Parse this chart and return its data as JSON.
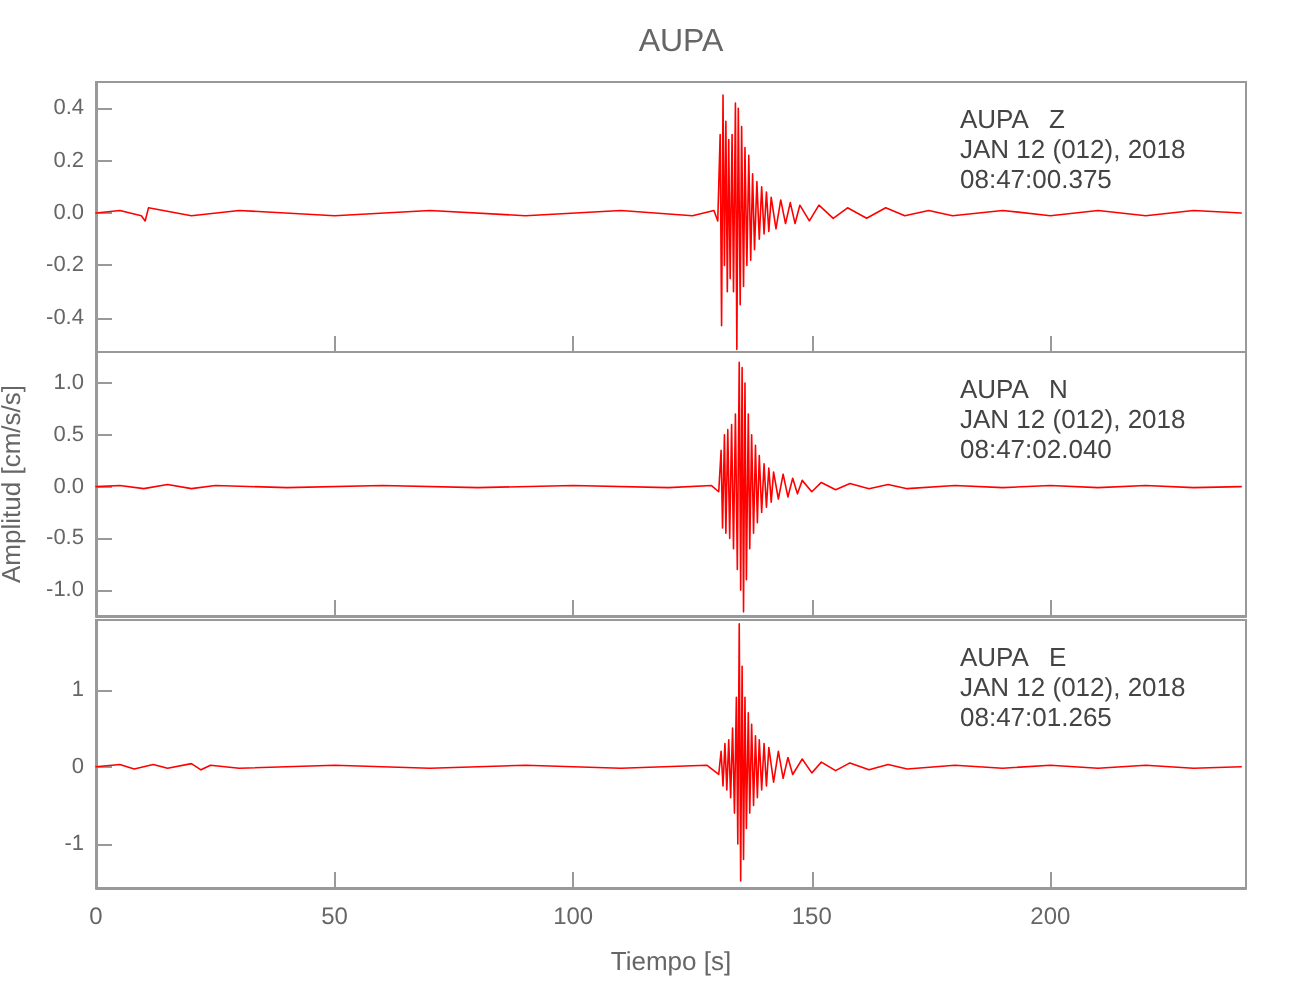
{
  "chart_data": [
    {
      "type": "line",
      "title": "AUPA",
      "color": "#ff0000",
      "marker": "none",
      "line_style": "solid",
      "grid": false,
      "tick_labels": "y",
      "x": [
        0,
        5,
        9.5,
        10.3,
        11,
        20,
        30,
        50,
        70,
        90,
        110,
        125,
        129.5,
        130.3,
        130.8,
        131.1,
        131.4,
        131.7,
        132,
        132.3,
        132.6,
        132.9,
        133.3,
        133.6,
        134,
        134.3,
        134.6,
        135,
        135.3,
        135.7,
        136,
        136.4,
        136.8,
        137.2,
        137.6,
        138,
        138.5,
        139,
        139.5,
        140,
        140.5,
        141,
        141.5,
        142.5,
        143.5,
        144.5,
        145.5,
        146.5,
        147.5,
        149.5,
        151.5,
        154.5,
        157.5,
        161.5,
        165.5,
        169.5,
        174.5,
        179.5,
        190,
        200,
        210,
        220,
        230,
        240
      ],
      "values": [
        0,
        0.01,
        -0.01,
        -0.03,
        0.02,
        -0.01,
        0.01,
        -0.01,
        0.01,
        -0.01,
        0.01,
        -0.01,
        0.01,
        -0.03,
        0.3,
        -0.43,
        0.45,
        -0.2,
        0.35,
        -0.3,
        0.28,
        -0.25,
        0.3,
        -0.3,
        0.42,
        -0.52,
        0.4,
        -0.35,
        0.33,
        -0.28,
        0.25,
        -0.2,
        0.22,
        -0.18,
        0.15,
        -0.14,
        0.12,
        -0.1,
        0.1,
        -0.08,
        0.08,
        -0.07,
        0.06,
        -0.06,
        0.05,
        -0.04,
        0.04,
        -0.04,
        0.03,
        -0.03,
        0.03,
        -0.02,
        0.02,
        -0.02,
        0.02,
        -0.01,
        0.01,
        -0.01,
        0.01,
        -0.01,
        0.01,
        -0.01,
        0.01,
        0
      ],
      "xlim": [
        0,
        241
      ],
      "xticks": [
        0,
        50,
        100,
        150,
        200
      ],
      "ylim": [
        -0.53,
        0.5
      ],
      "yticks": [
        {
          "value": -0.4,
          "label": "-0.4"
        },
        -0.2,
        {
          "value": 0,
          "label": "0.0"
        },
        0.2,
        0.4
      ],
      "annotations": [
        "AUPA   Z",
        "JAN 12 (012), 2018",
        "08:47:00.375"
      ]
    },
    {
      "type": "line",
      "ylabel": "Amplitud [cm/s/s]",
      "color": "#ff0000",
      "marker": "none",
      "line_style": "solid",
      "grid": false,
      "tick_labels": "y",
      "x": [
        0,
        5,
        10,
        15,
        20,
        25,
        40,
        60,
        80,
        100,
        120,
        129,
        130.5,
        131,
        131.3,
        131.7,
        132,
        132.4,
        132.8,
        133.2,
        133.6,
        134,
        134.4,
        134.8,
        135.1,
        135.4,
        135.7,
        136,
        136.3,
        136.7,
        137,
        137.4,
        137.8,
        138.2,
        138.6,
        139,
        139.5,
        140,
        140.5,
        141,
        141.5,
        142,
        143,
        144,
        145,
        146,
        147,
        148,
        150,
        152,
        155,
        158,
        162,
        166,
        170,
        180,
        190,
        200,
        210,
        220,
        230,
        240
      ],
      "values": [
        0,
        0.01,
        -0.02,
        0.02,
        -0.02,
        0.01,
        -0.01,
        0.01,
        -0.01,
        0.01,
        -0.01,
        0.01,
        -0.05,
        0.35,
        -0.4,
        0.5,
        -0.45,
        0.55,
        -0.5,
        0.6,
        -0.6,
        0.7,
        -0.8,
        1.2,
        -1,
        1.15,
        -1.21,
        1,
        -0.9,
        0.7,
        -0.6,
        0.5,
        -0.45,
        0.4,
        -0.35,
        0.3,
        -0.25,
        0.22,
        -0.2,
        0.18,
        -0.15,
        0.14,
        -0.12,
        0.12,
        -0.1,
        0.08,
        -0.07,
        0.06,
        -0.05,
        0.04,
        -0.03,
        0.03,
        -0.02,
        0.02,
        -0.02,
        0.01,
        -0.01,
        0.01,
        -0.01,
        0.01,
        -0.01,
        0
      ],
      "xlim": [
        0,
        241
      ],
      "xticks": [
        0,
        50,
        100,
        150,
        200
      ],
      "ylim": [
        -1.25,
        1.3
      ],
      "yticks": [
        {
          "value": -1,
          "label": "-1.0"
        },
        -0.5,
        {
          "value": 0,
          "label": "0.0"
        },
        0.5,
        {
          "value": 1,
          "label": "1.0"
        }
      ],
      "annotations": [
        "AUPA   N",
        "JAN 12 (012), 2018",
        "08:47:02.040"
      ]
    },
    {
      "type": "line",
      "xlabel": "Tiempo [s]",
      "color": "#ff0000",
      "marker": "none",
      "line_style": "solid",
      "grid": false,
      "x": [
        0,
        5,
        8,
        12,
        15,
        20,
        22,
        24,
        30,
        50,
        70,
        90,
        110,
        128,
        130.5,
        131,
        131.4,
        131.8,
        132.2,
        132.6,
        133,
        133.4,
        133.8,
        134.2,
        134.5,
        134.8,
        135.1,
        135.4,
        135.7,
        136,
        136.3,
        136.7,
        137,
        137.4,
        137.8,
        138.2,
        138.6,
        139,
        139.5,
        140,
        140.5,
        141,
        142,
        143,
        144,
        145,
        146,
        148,
        150,
        152,
        155,
        158,
        162,
        166,
        170,
        180,
        190,
        200,
        210,
        220,
        230,
        240
      ],
      "values": [
        0,
        0.03,
        -0.03,
        0.03,
        -0.02,
        0.04,
        -0.04,
        0.02,
        -0.02,
        0.02,
        -0.02,
        0.02,
        -0.02,
        0.02,
        -0.1,
        0.2,
        -0.25,
        0.3,
        -0.3,
        0.35,
        -0.4,
        0.5,
        -0.6,
        0.9,
        -1,
        1.85,
        -1.48,
        1.3,
        -1.2,
        0.9,
        -0.8,
        0.7,
        -0.6,
        0.55,
        -0.5,
        0.4,
        -0.4,
        0.35,
        -0.3,
        0.3,
        -0.25,
        0.25,
        -0.2,
        0.2,
        -0.15,
        0.12,
        -0.1,
        0.1,
        -0.08,
        0.06,
        -0.05,
        0.05,
        -0.04,
        0.03,
        -0.03,
        0.02,
        -0.02,
        0.02,
        -0.02,
        0.02,
        -0.02,
        0
      ],
      "xlim": [
        0,
        241
      ],
      "xticks": [
        0,
        50,
        100,
        150,
        200
      ],
      "ylim": [
        -1.57,
        1.9
      ],
      "yticks": [
        -1,
        0,
        1
      ],
      "annotations": [
        "AUPA   E",
        "JAN 12 (012), 2018",
        "08:47:01.265"
      ]
    }
  ]
}
